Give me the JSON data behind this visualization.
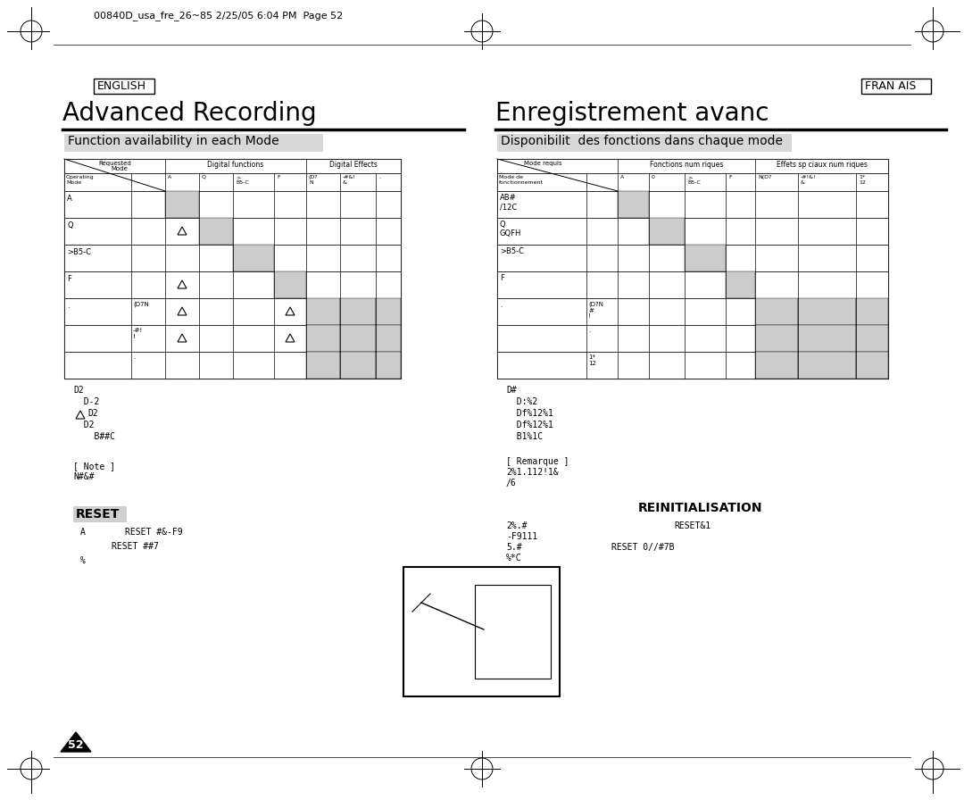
{
  "bg_color": "#ffffff",
  "header_text": "00840D_usa_fre_26~85 2/25/05 6:04 PM  Page 52",
  "left_lang_label": "ENGLISH",
  "right_lang_label": "FRAN AIS",
  "left_title": "Advanced Recording",
  "right_title": "Enregistrement avanc",
  "left_subtitle": "Function availability in each Mode",
  "right_subtitle": "Disponibilit  des fonctions dans chaque mode",
  "gray_color": "#cccccc",
  "page_num": "52"
}
